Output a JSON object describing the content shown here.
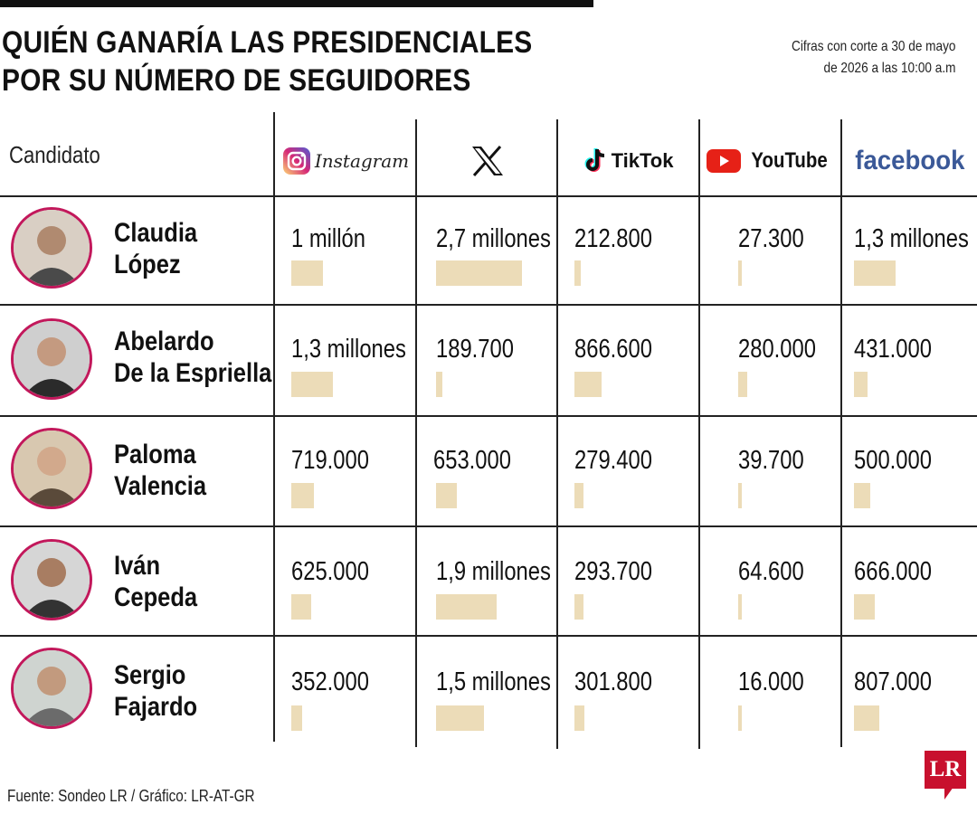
{
  "title": {
    "line1": "QUIÉN GANARÍA LAS PRESIDENCIALES",
    "line2": "POR SU NÚMERO DE SEGUIDORES"
  },
  "cutoff": {
    "line1": "Cifras con corte a 30 de mayo",
    "line2": "de 2026 a las 10:00 a.m"
  },
  "header": {
    "candidate": "Candidato",
    "instagram": "Instagram",
    "x": "X",
    "tiktok": "TikTok",
    "youtube": "YouTube",
    "facebook": "facebook"
  },
  "source": "Fuente: Sondeo LR / Gráfico: LR-AT-GR",
  "brand": "LR",
  "colors": {
    "bar": "#ecdcb8",
    "avatar_ring": "#c2185b",
    "instagram_gradient": [
      "#feda75",
      "#d62976",
      "#4f5bd5"
    ],
    "youtube": "#e62117",
    "facebook": "#3b5998",
    "brand": "#c8102e"
  },
  "chart_data": {
    "type": "table",
    "title": "QUIÉN GANARÍA LAS PRESIDENCIALES POR SU NÚMERO DE SEGUIDORES",
    "columns": [
      "Candidato",
      "Instagram",
      "X",
      "TikTok",
      "YouTube",
      "facebook"
    ],
    "rows": [
      {
        "name_line1": "Claudia",
        "name_line2": "López",
        "avatar": "person-icon",
        "labels": [
          "1 millón",
          "2,7 millones",
          "212.800",
          "27.300",
          "1,3 millones"
        ],
        "values": [
          1000000,
          2700000,
          212800,
          27300,
          1300000
        ]
      },
      {
        "name_line1": "Abelardo",
        "name_line2": "De la Espriella",
        "avatar": "person-icon",
        "labels": [
          "1,3 millones",
          "189.700",
          "866.600",
          "280.000",
          "431.000"
        ],
        "values": [
          1300000,
          189700,
          866600,
          280000,
          431000
        ]
      },
      {
        "name_line1": "Paloma",
        "name_line2": "Valencia",
        "avatar": "person-icon",
        "labels": [
          "719.000",
          "653.000",
          "279.400",
          "39.700",
          "500.000"
        ],
        "values": [
          719000,
          653000,
          279400,
          39700,
          500000
        ]
      },
      {
        "name_line1": "Iván",
        "name_line2": "Cepeda",
        "avatar": "person-icon",
        "labels": [
          "625.000",
          "1,9 millones",
          "293.700",
          "64.600",
          "666.000"
        ],
        "values": [
          625000,
          1900000,
          293700,
          64600,
          666000
        ]
      },
      {
        "name_line1": "Sergio",
        "name_line2": "Fajardo",
        "avatar": "person-icon",
        "labels": [
          "352.000",
          "1,5 millones",
          "301.800",
          "16.000",
          "807.000"
        ],
        "values": [
          352000,
          1500000,
          301800,
          16000,
          807000
        ]
      }
    ]
  }
}
